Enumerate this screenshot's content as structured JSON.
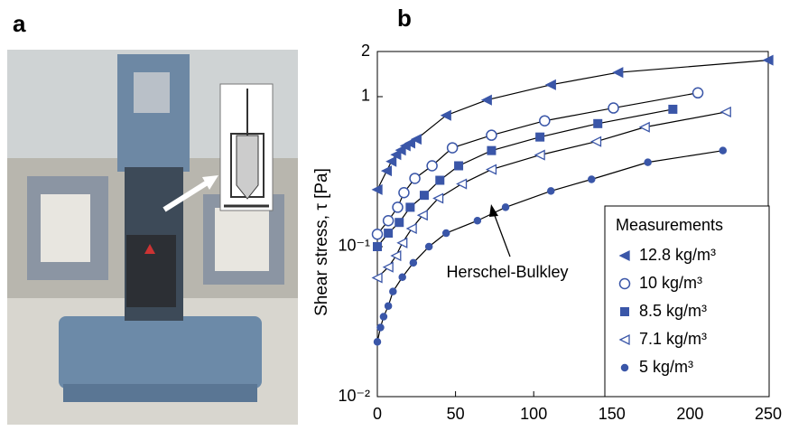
{
  "figure": {
    "panel_a_label": "a",
    "panel_b_label": "b"
  },
  "chart_data": {
    "type": "scatter",
    "y_label": "Shear stress, τ [Pa]",
    "xlim": [
      0,
      250
    ],
    "ylim": [
      0.01,
      2
    ],
    "log_y": true,
    "xticks": [
      0,
      50,
      100,
      150,
      200,
      250
    ],
    "yticks": [
      {
        "value": 0.01,
        "label": "10⁻²"
      },
      {
        "value": 0.1,
        "label": "10⁻¹"
      },
      1,
      2
    ],
    "legend_title": "Measurements",
    "legend_position": "lower right",
    "annotation": "Herschel-Bulkley",
    "series": [
      {
        "name": "12.8 kg/m³",
        "marker": "triangle-left",
        "color": "#3a56a8",
        "x": [
          0,
          6,
          9,
          12,
          15,
          18,
          21,
          25,
          44,
          70,
          111,
          154,
          250
        ],
        "values": [
          0.24,
          0.32,
          0.37,
          0.41,
          0.44,
          0.47,
          0.49,
          0.52,
          0.75,
          0.95,
          1.2,
          1.45,
          1.75
        ]
      },
      {
        "name": "10 kg/m³",
        "marker": "circle-open",
        "color": "#3a56a8",
        "x": [
          0,
          7,
          13,
          17,
          24,
          35,
          48,
          73,
          107,
          151,
          205
        ],
        "values": [
          0.121,
          0.149,
          0.183,
          0.229,
          0.285,
          0.346,
          0.456,
          0.553,
          0.69,
          0.84,
          1.06
        ]
      },
      {
        "name": "8.5 kg/m³",
        "marker": "square",
        "color": "#3a56a8",
        "x": [
          0,
          7,
          14,
          21,
          30,
          40,
          52,
          73,
          104,
          141,
          189
        ],
        "values": [
          0.1,
          0.123,
          0.145,
          0.183,
          0.22,
          0.277,
          0.346,
          0.437,
          0.538,
          0.661,
          0.824
        ]
      },
      {
        "name": "7.1 kg/m³",
        "marker": "triangle-left-open",
        "color": "#3a56a8",
        "x": [
          0,
          7,
          12,
          16,
          22,
          29,
          39,
          54,
          73,
          104,
          140,
          171,
          223
        ],
        "values": [
          0.062,
          0.073,
          0.087,
          0.106,
          0.132,
          0.162,
          0.21,
          0.262,
          0.327,
          0.408,
          0.502,
          0.626,
          0.79
        ]
      },
      {
        "name": "5 kg/m³",
        "marker": "circle",
        "color": "#3a56a8",
        "x": [
          0,
          2,
          4,
          7,
          10,
          16,
          23,
          33,
          44,
          64,
          82,
          111,
          137,
          173,
          221
        ],
        "values": [
          0.0232,
          0.0289,
          0.0341,
          0.0402,
          0.0502,
          0.0626,
          0.078,
          0.1,
          0.123,
          0.149,
          0.183,
          0.235,
          0.281,
          0.365,
          0.437
        ]
      }
    ]
  }
}
